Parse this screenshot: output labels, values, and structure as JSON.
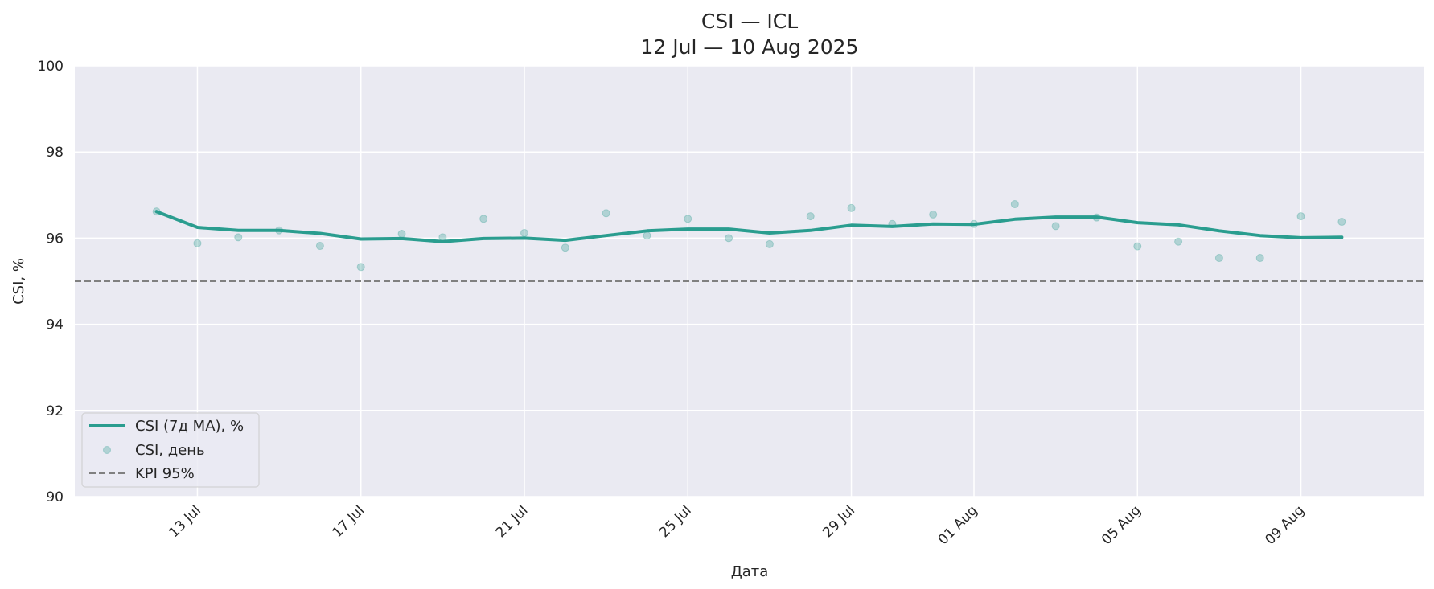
{
  "chart_data": {
    "type": "line",
    "title": "CSI — ICL",
    "subtitle": "12 Jul — 10 Aug 2025",
    "xlabel": "Дата",
    "ylabel": "CSI, %",
    "ylim": [
      90,
      100
    ],
    "xlim": [
      "2025-07-10",
      "2025-08-12"
    ],
    "y_ticks": [
      90,
      92,
      94,
      96,
      98,
      100
    ],
    "x_ticks": [
      {
        "date": "2025-07-13",
        "label": "13 Jul"
      },
      {
        "date": "2025-07-17",
        "label": "17 Jul"
      },
      {
        "date": "2025-07-21",
        "label": "21 Jul"
      },
      {
        "date": "2025-07-25",
        "label": "25 Jul"
      },
      {
        "date": "2025-07-29",
        "label": "29 Jul"
      },
      {
        "date": "2025-08-01",
        "label": "01 Aug"
      },
      {
        "date": "2025-08-05",
        "label": "05 Aug"
      },
      {
        "date": "2025-08-09",
        "label": "09 Aug"
      }
    ],
    "grid": true,
    "legend_position": "lower-left",
    "x": [
      "2025-07-12",
      "2025-07-13",
      "2025-07-14",
      "2025-07-15",
      "2025-07-16",
      "2025-07-17",
      "2025-07-18",
      "2025-07-19",
      "2025-07-20",
      "2025-07-21",
      "2025-07-22",
      "2025-07-23",
      "2025-07-24",
      "2025-07-25",
      "2025-07-26",
      "2025-07-27",
      "2025-07-28",
      "2025-07-29",
      "2025-07-30",
      "2025-07-31",
      "2025-08-01",
      "2025-08-02",
      "2025-08-03",
      "2025-08-04",
      "2025-08-05",
      "2025-08-06",
      "2025-08-07",
      "2025-08-08",
      "2025-08-09",
      "2025-08-10"
    ],
    "series": [
      {
        "name": "CSI (7д MA), %",
        "kind": "line",
        "color": "#2a9d8f",
        "values": [
          96.62,
          96.25,
          96.18,
          96.18,
          96.11,
          95.98,
          95.99,
          95.92,
          95.99,
          96.0,
          95.95,
          96.06,
          96.17,
          96.21,
          96.21,
          96.12,
          96.18,
          96.3,
          96.27,
          96.33,
          96.32,
          96.44,
          96.49,
          96.49,
          96.36,
          96.31,
          96.17,
          96.06,
          96.01,
          96.02
        ]
      },
      {
        "name": "CSI, день",
        "kind": "scatter",
        "color": "#2a9d8f",
        "values": [
          96.62,
          95.88,
          96.02,
          96.18,
          95.82,
          95.33,
          96.1,
          96.02,
          96.45,
          96.12,
          95.78,
          96.58,
          96.06,
          96.45,
          96.0,
          95.86,
          96.51,
          96.7,
          96.33,
          96.55,
          96.33,
          96.79,
          96.28,
          96.48,
          95.81,
          95.92,
          95.54,
          95.54,
          96.51,
          96.38
        ]
      }
    ],
    "reference_lines": [
      {
        "name": "KPI 95%",
        "y": 95,
        "color": "#808080",
        "style": "dashed"
      }
    ]
  }
}
